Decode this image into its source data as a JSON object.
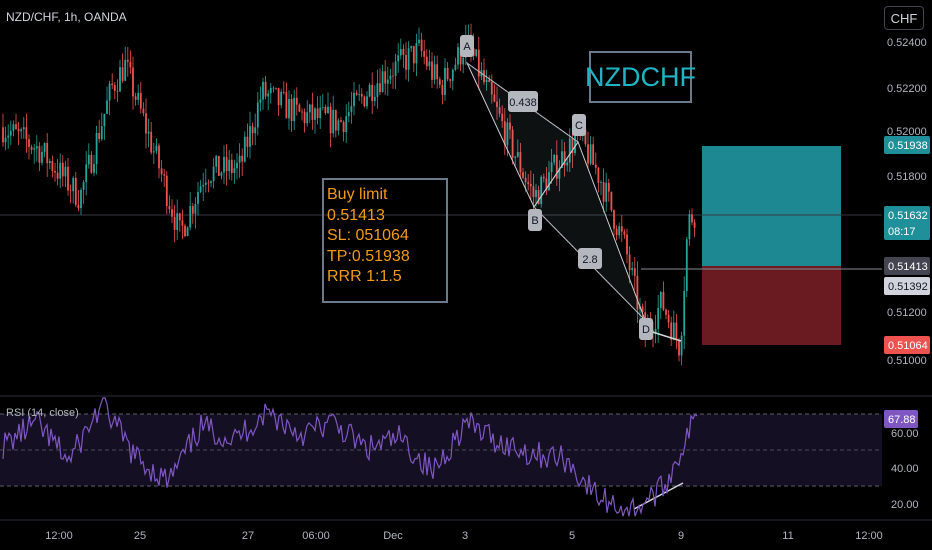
{
  "symbol_header": "NZD/CHF, 1h, OANDA",
  "currency_button": "CHF",
  "title_label": "NZDCHF",
  "trade_box": [
    "Buy limit",
    "0.51413",
    "SL: 051064",
    "TP:0.51938",
    "RRR 1:1.5"
  ],
  "rsi_label": "RSI (14, close)",
  "colors": {
    "up": "#26a69a",
    "down": "#ef5350",
    "target": "#1f8f99",
    "stop": "#6a1b22",
    "rsi": "#7e57c2",
    "accent": "#20b5c5"
  },
  "chart_data": [
    {
      "type": "candlestick",
      "xlabels": [
        "12:00",
        "25",
        "27",
        "06:00",
        "Dec",
        "3",
        "5",
        "9",
        "11",
        "12:00"
      ],
      "ylim": [
        0.5092,
        0.5245
      ],
      "yticks": [
        "0.52400",
        "0.52200",
        "0.52000",
        "0.51800",
        "0.51200",
        "0.51000"
      ],
      "price_labels": [
        {
          "text": "0.51938",
          "value": 0.51938,
          "kind": "target"
        },
        {
          "text": "0.51632",
          "value": 0.51632,
          "kind": "current",
          "sub": "08:17"
        },
        {
          "text": "0.51413",
          "value": 0.51413,
          "kind": "entry"
        },
        {
          "text": "0.51392",
          "value": 0.51392,
          "kind": "low"
        },
        {
          "text": "0.51064",
          "value": 0.51064,
          "kind": "stop"
        }
      ],
      "pattern": [
        {
          "label": "A",
          "value": 0.5231
        },
        {
          "label": "B",
          "value": 0.517
        },
        {
          "label": "C",
          "value": 0.5195
        },
        {
          "label": "D",
          "value": 0.5115
        }
      ],
      "ratios": [
        "0.438",
        "2.8"
      ],
      "key_levels": [
        {
          "label": "start",
          "value": 0.5198
        },
        {
          "label": "25 high",
          "value": 0.5223
        },
        {
          "label": "25 low",
          "value": 0.5155
        },
        {
          "label": "27 high",
          "value": 0.5212
        },
        {
          "label": "Dec high",
          "value": 0.5229
        },
        {
          "label": "3 high",
          "value": 0.5232
        },
        {
          "label": "5 high",
          "value": 0.5195
        },
        {
          "label": "low",
          "value": 0.511
        },
        {
          "label": "last",
          "value": 0.5165
        }
      ]
    },
    {
      "type": "line",
      "title": "RSI (14, close)",
      "ylim": [
        13,
        78
      ],
      "yticks": [
        "60.00",
        "40.00",
        "20.00"
      ],
      "bands": [
        70,
        30
      ],
      "last_value": "67.88",
      "levels": [
        52,
        64,
        44,
        74,
        46,
        33,
        62,
        55,
        70,
        58,
        64,
        50,
        56,
        38,
        64,
        54,
        48,
        45,
        25,
        18,
        30,
        68
      ]
    }
  ]
}
